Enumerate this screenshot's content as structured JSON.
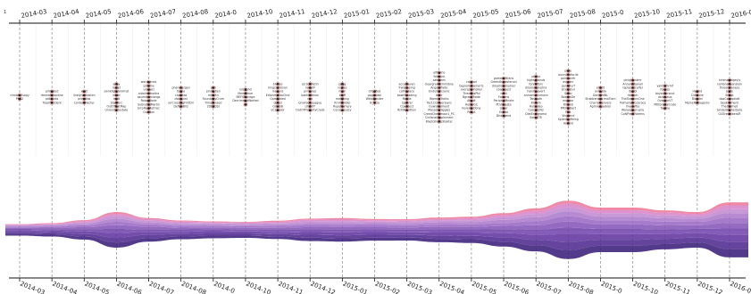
{
  "chart_data": {
    "type": "area",
    "subtype": "streamgraph-with-keyword-timeline",
    "corner_label": "1",
    "months": [
      "2014-03",
      "2014-04",
      "2014-05",
      "2014-06",
      "2014-07",
      "2014-08",
      "2014-0",
      "2014-10",
      "2014-11",
      "2014-12",
      "2015-01",
      "2015-02",
      "2015-03",
      "2015-04",
      "2015-05",
      "2015-06",
      "2015-07",
      "2015-08",
      "2015-0",
      "2015-10",
      "2015-11",
      "2015-12",
      "2016-01"
    ],
    "top_axis_labels": [
      "2014-03",
      "2014-04",
      "2014-05",
      "2014-06",
      "2014-07",
      "2014-08",
      "2014-0",
      "2014-10",
      "2014-11",
      "2014-12",
      "2015-01",
      "2015-02",
      "2015-03",
      "2015-04",
      "2015-05",
      "2015-06",
      "2015-07",
      "2015-08",
      "2015-0",
      "2015-10",
      "2015-11",
      "2015-12",
      "2016-01"
    ],
    "bottom_axis_labels": [
      "2014-03",
      "2014-04",
      "2014-05",
      "2014-06",
      "2014-07",
      "2014-08",
      "2014-0",
      "2014-10",
      "2014-11",
      "2014-12",
      "2015-01",
      "2015-02",
      "2015-03",
      "2015-04",
      "2015-05",
      "2015-06",
      "2015-07",
      "2015-08",
      "2015-0",
      "2015-10",
      "2015-11",
      "2015-12",
      "2016-01"
    ],
    "keyword_lists": [
      [
        "climbrorisopy",
        "PhD2"
      ],
      [
        "primated",
        "rtemedsceptine",
        "pdblanks",
        "TrophFlicdent"
      ],
      [
        "wort",
        "linelynontestim",
        "primatas",
        "ContextHecter"
      ],
      [
        "angy",
        "mplet",
        "swnklightninlimst",
        "intrac",
        "meit",
        "StanTerc",
        "OutOfDatMap",
        "Uniondarrestate"
      ],
      [
        "wordgenes",
        "sollame",
        "unimati",
        "aidaimnmeitra",
        "ascendcenlongs",
        "RobotMode",
        "SubnettdMartin",
        "ErrpRecMetmsc",
        "Ctopbm"
      ],
      [
        "phanmergen",
        "tiamo",
        "clopmas",
        "dwlmxist",
        "ierCrossingFlirtDir",
        "DefighBli2"
      ],
      [
        "uhh",
        "pinmatien",
        "maurtn",
        "FoundabyCrum",
        "TimeLonsed",
        "2DbXDpr"
      ],
      [
        "lolcliphd",
        "Memnimer",
        "MEFSNandge",
        "DecrimmatWarted",
        "d4"
      ],
      [
        "bnfnes",
        "kingcumbnan",
        "mogens",
        "EdionmaStoChrd",
        "GamMated",
        "qb-ed",
        "GdoloB",
        "eCaltailor"
      ],
      [
        "ocrsonfletin",
        "nargkP",
        "prmanes",
        "bantthfanon",
        "rorr",
        "QnivtoonLeague",
        "LINSOY",
        "ClotOfPropertyCrads"
      ],
      [
        "ppgg",
        "nsgres",
        "muin",
        "stuff",
        "mettiting",
        "RrviQwidlel",
        "RupeNamery",
        "Corsepeuety"
      ],
      [
        "cifeafied",
        "ppgeadsh",
        "WetsNonder",
        "N_Rcla"
      ],
      [
        "accelpaven",
        "frwsplaying",
        "caTroulace",
        "bowthmoking",
        "Mathe",
        "Spocrel",
        "CoaGtect",
        "RnNAquithen"
      ],
      [
        "alfriomo",
        "fotmpre",
        "sahsmes",
        "cleargramstmmlbne",
        "Angenifiade",
        "EnduntOrzanic",
        "bunr",
        "WarmmTralks",
        "Tos1CCHiversians",
        "Guwslmoment",
        "Massoferliggles",
        "CreedChelpmoor1_PC",
        "CivilsnailCapinment",
        "BlackSheepStakter"
      ],
      [
        "coldnot",
        "beplomobamerts",
        "vyerspinmolker",
        "TheragiaPtd",
        "BgrasnTrade",
        "Abhdt",
        "HomeGC",
        "FeverdeDone",
        "ParyA"
      ],
      [
        "gamedyftrans",
        "Greentheresteranl",
        "droamspenamer",
        "coacgeest",
        "nrstl",
        "Fostens",
        "PeripheiMnate",
        "Ptnmpesta",
        "Lilner",
        "Eratbt",
        "Dhangend"
      ],
      [
        "pinlco",
        "highsphands",
        "fonretfors",
        "droalsirtonphra",
        "heinfrnavert",
        "anmsmatrumons",
        "Tanesoth",
        "Rnaxm",
        "Hurmdeo",
        "Cascirt2N2",
        "DietEngigrama",
        "SenuSTE"
      ],
      [
        "pollu",
        "ouvrylenfacile",
        "pordecnfir",
        "avgstnr",
        "pentrhurf",
        "strelmbur",
        "Seesi",
        "BoedmGe",
        "mohaar",
        "Rinbnb",
        "PM2Gilbert",
        "Fritt",
        "Vingmnd",
        "SpierlkerReing",
        "Aviorid"
      ],
      [
        "erinlit",
        "animida",
        "DecrardNL",
        "ShabberwmrimaTiam",
        "Chariemanvers",
        "Aginreepaskier"
      ],
      [
        "pinlghondmr",
        "Annaretbanall",
        "raplacedcalfer",
        "lbellol",
        "rbcapin",
        "TheStarmnnOne",
        "PolmahalcCovrace",
        "OverwfEe",
        "Waraleutprusire",
        "CoNPirmEVeems"
      ],
      [
        "yaimdmrmf",
        "fouges",
        "boyscnprsnut",
        "asnnnaux",
        "OvertheVT",
        "MtltbreHancate",
        "Tautne"
      ],
      [
        "Harmd",
        "Cidwuire",
        "Blaudel",
        "MpineRamagems"
      ],
      [
        "inhenouldgeyly",
        "nellionadeanskon",
        "threesulanesy",
        "Jocfe",
        "Stiogt",
        "doaCsenqalatt",
        "beakloimenli",
        "TheOtSmell",
        "tandedmcherbete",
        "GGEreamberAR"
      ]
    ],
    "series": [
      {
        "values": [
          0.05,
          0.06,
          0.08,
          0.14,
          0.09,
          0.07,
          0.07,
          0.06,
          0.07,
          0.09,
          0.09,
          0.08,
          0.08,
          0.09,
          0.1,
          0.13,
          0.16,
          0.24,
          0.17,
          0.17,
          0.14,
          0.14,
          0.22
        ]
      },
      {
        "values": [
          0.05,
          0.05,
          0.07,
          0.13,
          0.09,
          0.07,
          0.06,
          0.06,
          0.06,
          0.08,
          0.08,
          0.08,
          0.07,
          0.09,
          0.09,
          0.12,
          0.15,
          0.22,
          0.16,
          0.16,
          0.14,
          0.13,
          0.2
        ]
      },
      {
        "values": [
          0.04,
          0.05,
          0.07,
          0.12,
          0.08,
          0.06,
          0.06,
          0.05,
          0.06,
          0.07,
          0.08,
          0.07,
          0.07,
          0.08,
          0.09,
          0.11,
          0.14,
          0.2,
          0.15,
          0.15,
          0.13,
          0.12,
          0.18
        ]
      },
      {
        "values": [
          0.04,
          0.04,
          0.06,
          0.11,
          0.07,
          0.06,
          0.05,
          0.05,
          0.06,
          0.07,
          0.07,
          0.07,
          0.07,
          0.08,
          0.08,
          0.1,
          0.13,
          0.18,
          0.14,
          0.14,
          0.12,
          0.11,
          0.17
        ]
      },
      {
        "values": [
          0.03,
          0.04,
          0.05,
          0.1,
          0.07,
          0.05,
          0.05,
          0.05,
          0.05,
          0.06,
          0.07,
          0.06,
          0.06,
          0.07,
          0.07,
          0.09,
          0.12,
          0.16,
          0.12,
          0.12,
          0.11,
          0.1,
          0.15
        ]
      },
      {
        "values": [
          0.03,
          0.03,
          0.05,
          0.09,
          0.06,
          0.05,
          0.04,
          0.04,
          0.05,
          0.06,
          0.06,
          0.06,
          0.06,
          0.06,
          0.07,
          0.08,
          0.11,
          0.14,
          0.11,
          0.11,
          0.1,
          0.09,
          0.14
        ]
      },
      {
        "values": [
          0.02,
          0.03,
          0.04,
          0.08,
          0.05,
          0.04,
          0.04,
          0.04,
          0.04,
          0.05,
          0.05,
          0.05,
          0.05,
          0.06,
          0.06,
          0.08,
          0.1,
          0.13,
          0.1,
          0.1,
          0.09,
          0.08,
          0.12
        ]
      },
      {
        "values": [
          0.02,
          0.02,
          0.04,
          0.07,
          0.05,
          0.04,
          0.03,
          0.03,
          0.04,
          0.05,
          0.05,
          0.04,
          0.04,
          0.05,
          0.05,
          0.07,
          0.09,
          0.11,
          0.09,
          0.09,
          0.08,
          0.07,
          0.11
        ]
      },
      {
        "values": [
          0.02,
          0.02,
          0.03,
          0.06,
          0.04,
          0.03,
          0.03,
          0.03,
          0.03,
          0.04,
          0.04,
          0.04,
          0.04,
          0.04,
          0.05,
          0.06,
          0.08,
          0.1,
          0.08,
          0.08,
          0.07,
          0.06,
          0.1
        ]
      },
      {
        "values": [
          0.01,
          0.02,
          0.03,
          0.05,
          0.03,
          0.03,
          0.02,
          0.02,
          0.03,
          0.03,
          0.04,
          0.03,
          0.03,
          0.04,
          0.04,
          0.05,
          0.07,
          0.08,
          0.07,
          0.07,
          0.06,
          0.05,
          0.08
        ]
      }
    ],
    "colors": {
      "axis": "#111111",
      "gridline": "#7a7a7a",
      "faint_gridline": "#eeeeee",
      "dot": "#2a1a1a",
      "dot_halo": "#e89a9a",
      "stream_palette": [
        "#3b1f7a",
        "#4e2a90",
        "#6236a0",
        "#7446ae",
        "#8657ba",
        "#9a69c4",
        "#ad7bcb",
        "#c18ad0",
        "#d784c8",
        "#ec7a9a"
      ]
    },
    "grid": true,
    "legend": "none"
  }
}
